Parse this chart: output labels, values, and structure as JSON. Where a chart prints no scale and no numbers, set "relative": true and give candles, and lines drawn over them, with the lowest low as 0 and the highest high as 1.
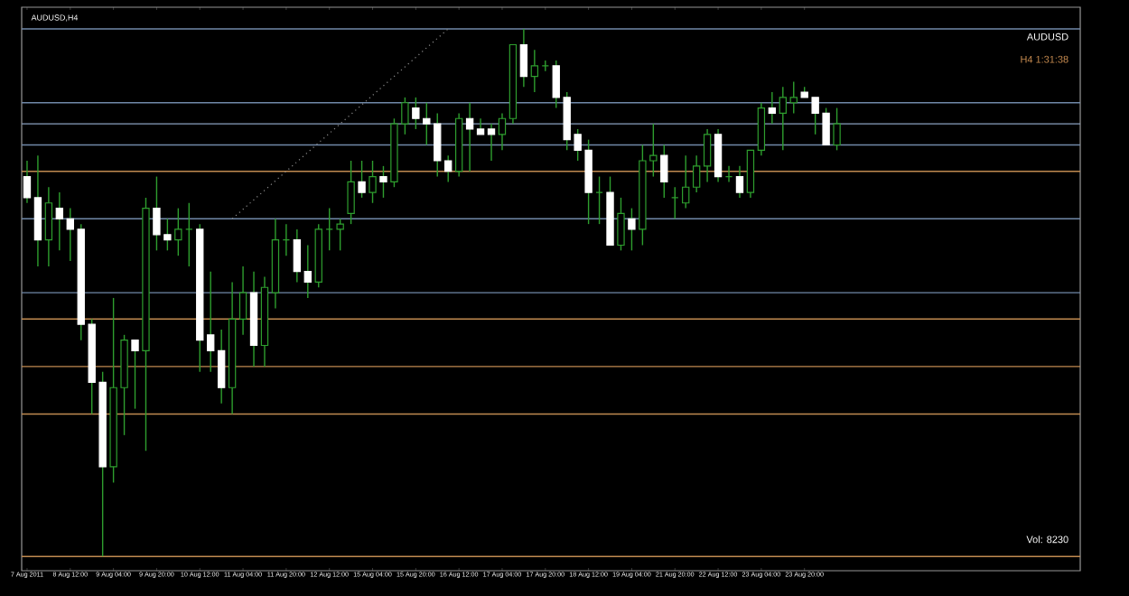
{
  "chart_data": {
    "type": "candlestick",
    "title": "AUDUSD,H4",
    "relative": true,
    "color": "#2e9e2e",
    "categories": [
      "7 Aug 2011",
      null,
      null,
      null,
      "8 Aug 12:00",
      null,
      null,
      null,
      "9 Aug 04:00",
      null,
      null,
      null,
      "9 Aug 20:00",
      null,
      null,
      null,
      "10 Aug 12:00",
      null,
      null,
      null,
      "11 Aug 04:00",
      null,
      null,
      null,
      "11 Aug 20:00",
      null,
      null,
      null,
      "12 Aug 12:00",
      null,
      null,
      null,
      "15 Aug 04:00",
      null,
      null,
      null,
      "15 Aug 20:00",
      null,
      null,
      null,
      "16 Aug 12:00",
      null,
      null,
      null,
      "17 Aug 04:00",
      null,
      null,
      null,
      "17 Aug 20:00",
      null,
      null,
      null,
      "18 Aug 12:00",
      null,
      null,
      null,
      "19 Aug 04:00",
      null,
      null,
      null,
      "21 Aug 20:00",
      null,
      null,
      null,
      "22 Aug 12:00",
      null,
      null,
      null,
      "23 Aug 04:00",
      null,
      null,
      null,
      "23 Aug 20:00",
      null,
      null,
      null
    ],
    "ohlc": [
      [
        0.72,
        0.75,
        0.67,
        0.68
      ],
      [
        0.68,
        0.76,
        0.55,
        0.6
      ],
      [
        0.6,
        0.7,
        0.55,
        0.67
      ],
      [
        0.66,
        0.69,
        0.58,
        0.64
      ],
      [
        0.64,
        0.66,
        0.56,
        0.62
      ],
      [
        0.62,
        0.63,
        0.41,
        0.44
      ],
      [
        0.44,
        0.45,
        0.27,
        0.33
      ],
      [
        0.33,
        0.35,
        0.0,
        0.17
      ],
      [
        0.17,
        0.49,
        0.14,
        0.32
      ],
      [
        0.32,
        0.42,
        0.23,
        0.41
      ],
      [
        0.41,
        0.41,
        0.28,
        0.39
      ],
      [
        0.39,
        0.68,
        0.2,
        0.66
      ],
      [
        0.66,
        0.72,
        0.58,
        0.61
      ],
      [
        0.61,
        0.64,
        0.58,
        0.6
      ],
      [
        0.6,
        0.66,
        0.57,
        0.62
      ],
      [
        0.62,
        0.67,
        0.55,
        0.62
      ],
      [
        0.62,
        0.63,
        0.35,
        0.41
      ],
      [
        0.42,
        0.54,
        0.35,
        0.39
      ],
      [
        0.39,
        0.43,
        0.29,
        0.32
      ],
      [
        0.32,
        0.52,
        0.27,
        0.45
      ],
      [
        0.45,
        0.55,
        0.42,
        0.5
      ],
      [
        0.5,
        0.54,
        0.36,
        0.4
      ],
      [
        0.4,
        0.53,
        0.36,
        0.51
      ],
      [
        0.5,
        0.64,
        0.47,
        0.6
      ],
      [
        0.6,
        0.63,
        0.57,
        0.6
      ],
      [
        0.6,
        0.62,
        0.52,
        0.54
      ],
      [
        0.54,
        0.59,
        0.49,
        0.52
      ],
      [
        0.52,
        0.63,
        0.51,
        0.62
      ],
      [
        0.62,
        0.66,
        0.58,
        0.62
      ],
      [
        0.62,
        0.64,
        0.58,
        0.63
      ],
      [
        0.65,
        0.75,
        0.63,
        0.71
      ],
      [
        0.71,
        0.75,
        0.68,
        0.69
      ],
      [
        0.69,
        0.75,
        0.67,
        0.72
      ],
      [
        0.72,
        0.74,
        0.68,
        0.71
      ],
      [
        0.71,
        0.83,
        0.7,
        0.82
      ],
      [
        0.82,
        0.87,
        0.8,
        0.86
      ],
      [
        0.85,
        0.87,
        0.81,
        0.83
      ],
      [
        0.83,
        0.86,
        0.78,
        0.82
      ],
      [
        0.82,
        0.84,
        0.72,
        0.75
      ],
      [
        0.75,
        0.76,
        0.71,
        0.73
      ],
      [
        0.73,
        0.84,
        0.72,
        0.83
      ],
      [
        0.83,
        0.86,
        0.73,
        0.81
      ],
      [
        0.81,
        0.83,
        0.8,
        0.8
      ],
      [
        0.81,
        0.82,
        0.75,
        0.8
      ],
      [
        0.8,
        0.84,
        0.77,
        0.83
      ],
      [
        0.83,
        0.97,
        0.82,
        0.97
      ],
      [
        0.97,
        1.0,
        0.89,
        0.91
      ],
      [
        0.91,
        0.96,
        0.88,
        0.93
      ],
      [
        0.93,
        0.94,
        0.92,
        0.93
      ],
      [
        0.93,
        0.94,
        0.85,
        0.87
      ],
      [
        0.87,
        0.88,
        0.77,
        0.79
      ],
      [
        0.8,
        0.81,
        0.75,
        0.77
      ],
      [
        0.77,
        0.79,
        0.63,
        0.69
      ],
      [
        0.69,
        0.72,
        0.63,
        0.69
      ],
      [
        0.69,
        0.72,
        0.59,
        0.59
      ],
      [
        0.59,
        0.68,
        0.58,
        0.65
      ],
      [
        0.64,
        0.66,
        0.58,
        0.62
      ],
      [
        0.62,
        0.78,
        0.59,
        0.75
      ],
      [
        0.75,
        0.82,
        0.72,
        0.76
      ],
      [
        0.76,
        0.78,
        0.68,
        0.71
      ],
      [
        0.68,
        0.7,
        0.64,
        0.68
      ],
      [
        0.67,
        0.76,
        0.66,
        0.7
      ],
      [
        0.7,
        0.76,
        0.69,
        0.74
      ],
      [
        0.74,
        0.81,
        0.71,
        0.8
      ],
      [
        0.8,
        0.81,
        0.71,
        0.72
      ],
      [
        0.72,
        0.74,
        0.71,
        0.72
      ],
      [
        0.72,
        0.74,
        0.68,
        0.69
      ],
      [
        0.69,
        0.77,
        0.68,
        0.77
      ],
      [
        0.77,
        0.86,
        0.76,
        0.85
      ],
      [
        0.85,
        0.88,
        0.82,
        0.84
      ],
      [
        0.84,
        0.89,
        0.77,
        0.87
      ],
      [
        0.86,
        0.9,
        0.84,
        0.87
      ],
      [
        0.88,
        0.89,
        0.87,
        0.87
      ],
      [
        0.87,
        0.87,
        0.8,
        0.84
      ],
      [
        0.84,
        0.85,
        0.78,
        0.78
      ],
      [
        0.78,
        0.85,
        0.77,
        0.82
      ]
    ],
    "colors": [
      "#ffffff",
      "#ffffff",
      "#2e9e2e",
      "#ffffff",
      "#ffffff",
      "#ffffff",
      "#ffffff",
      "#ffffff",
      "#2e9e2e",
      "#2e9e2e",
      "#ffffff",
      "#2e9e2e",
      "#ffffff",
      "#ffffff",
      "#2e9e2e",
      "#2e9e2e",
      "#ffffff",
      "#ffffff",
      "#ffffff",
      "#2e9e2e",
      "#2e9e2e",
      "#ffffff",
      "#2e9e2e",
      "#2e9e2e",
      "#2e9e2e",
      "#ffffff",
      "#ffffff",
      "#2e9e2e",
      "#2e9e2e",
      "#2e9e2e",
      "#2e9e2e",
      "#ffffff",
      "#2e9e2e",
      "#ffffff",
      "#2e9e2e",
      "#2e9e2e",
      "#ffffff",
      "#ffffff",
      "#ffffff",
      "#ffffff",
      "#2e9e2e",
      "#ffffff",
      "#ffffff",
      "#ffffff",
      "#2e9e2e",
      "#2e9e2e",
      "#ffffff",
      "#2e9e2e",
      "#2e9e2e",
      "#ffffff",
      "#ffffff",
      "#ffffff",
      "#ffffff",
      "#2e9e2e",
      "#ffffff",
      "#2e9e2e",
      "#ffffff",
      "#2e9e2e",
      "#2e9e2e",
      "#ffffff",
      "#2e9e2e",
      "#2e9e2e",
      "#2e9e2e",
      "#2e9e2e",
      "#ffffff",
      "#2e9e2e",
      "#ffffff",
      "#2e9e2e",
      "#2e9e2e",
      "#ffffff",
      "#2e9e2e",
      "#2e9e2e",
      "#ffffff",
      "#ffffff",
      "#ffffff",
      "#2e9e2e"
    ],
    "series": [
      {
        "type": "line",
        "color": "#8c8c8c",
        "line_style": "dotted",
        "values": [
          null,
          null,
          null,
          null,
          null,
          null,
          null,
          null,
          null,
          null,
          null,
          null,
          null,
          null,
          null,
          null,
          null,
          null,
          null,
          0.64,
          null,
          null,
          null,
          null,
          null,
          null,
          null,
          null,
          null,
          null,
          null,
          null,
          null,
          null,
          null,
          null,
          null,
          null,
          null,
          1.0,
          null,
          null,
          null,
          null,
          null,
          null,
          null,
          null,
          null,
          null,
          null,
          null,
          null,
          null,
          null,
          null,
          null,
          null,
          null,
          null,
          null,
          null,
          null,
          null,
          null,
          null,
          null,
          null,
          null,
          null,
          null,
          null,
          null,
          null,
          null,
          null
        ]
      }
    ],
    "ref_lines": [
      {
        "axis": "y",
        "value": 1.0,
        "color": "#7088a8"
      },
      {
        "axis": "y",
        "value": 0.86,
        "color": "#7088a8"
      },
      {
        "axis": "y",
        "value": 0.82,
        "color": "#8aa0c0"
      },
      {
        "axis": "y",
        "value": 0.78,
        "color": "#7088a8"
      },
      {
        "axis": "y",
        "value": 0.64,
        "color": "#7088a8"
      },
      {
        "axis": "y",
        "value": 0.5,
        "color": "#7088a8"
      },
      {
        "axis": "y",
        "value": 0.73,
        "color": "#c08a50"
      },
      {
        "axis": "y",
        "value": 0.45,
        "color": "#c08a50"
      },
      {
        "axis": "y",
        "value": 0.36,
        "color": "#c08a50"
      },
      {
        "axis": "y",
        "value": 0.27,
        "color": "#c08a50"
      },
      {
        "axis": "y",
        "value": 0.0,
        "color": "#c08a50"
      }
    ],
    "annotations": [
      "AUDUSD",
      "H4 1:31:38",
      "Vol: 8230"
    ]
  }
}
